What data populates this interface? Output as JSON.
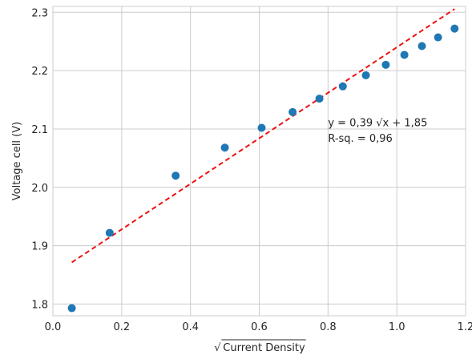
{
  "chart_data": {
    "type": "scatter",
    "xlabel": "Current Density",
    "xlabel_radical": "√",
    "ylabel": "Voltage cell (V)",
    "xlim": [
      0.0,
      1.2
    ],
    "ylim": [
      1.78,
      2.31
    ],
    "x_ticks": [
      0.0,
      0.2,
      0.4,
      0.6,
      0.8,
      1.0,
      1.2
    ],
    "x_tick_labels": [
      "0.0",
      "0.2",
      "0.4",
      "0.6",
      "0.8",
      "1.0",
      "1.2"
    ],
    "y_ticks": [
      1.8,
      1.9,
      2.0,
      2.1,
      2.2,
      2.3
    ],
    "y_tick_labels": [
      "1.8",
      "1.9",
      "2.0",
      "2.1",
      "2.2",
      "2.3"
    ],
    "grid": true,
    "series": [
      {
        "kind": "scatter",
        "color": "#1f77b4",
        "points": [
          {
            "x": 0.055,
            "y": 1.793
          },
          {
            "x": 0.165,
            "y": 1.922
          },
          {
            "x": 0.357,
            "y": 2.02
          },
          {
            "x": 0.5,
            "y": 2.068
          },
          {
            "x": 0.607,
            "y": 2.102
          },
          {
            "x": 0.697,
            "y": 2.129
          },
          {
            "x": 0.775,
            "y": 2.152
          },
          {
            "x": 0.843,
            "y": 2.173
          },
          {
            "x": 0.91,
            "y": 2.192
          },
          {
            "x": 0.968,
            "y": 2.21
          },
          {
            "x": 1.022,
            "y": 2.227
          },
          {
            "x": 1.073,
            "y": 2.242
          },
          {
            "x": 1.12,
            "y": 2.257
          },
          {
            "x": 1.168,
            "y": 2.272
          }
        ]
      },
      {
        "kind": "fit-line",
        "color": "#ee1111",
        "dashed": true,
        "slope": 0.39,
        "intercept": 1.85,
        "x_range": [
          0.055,
          1.168
        ]
      }
    ],
    "annotations": [
      {
        "text": "y = 0,39 √x + 1,85",
        "x": 0.8,
        "y": 2.105
      },
      {
        "text": "R-sq. = 0,96",
        "x": 0.8,
        "y": 2.078
      }
    ]
  }
}
